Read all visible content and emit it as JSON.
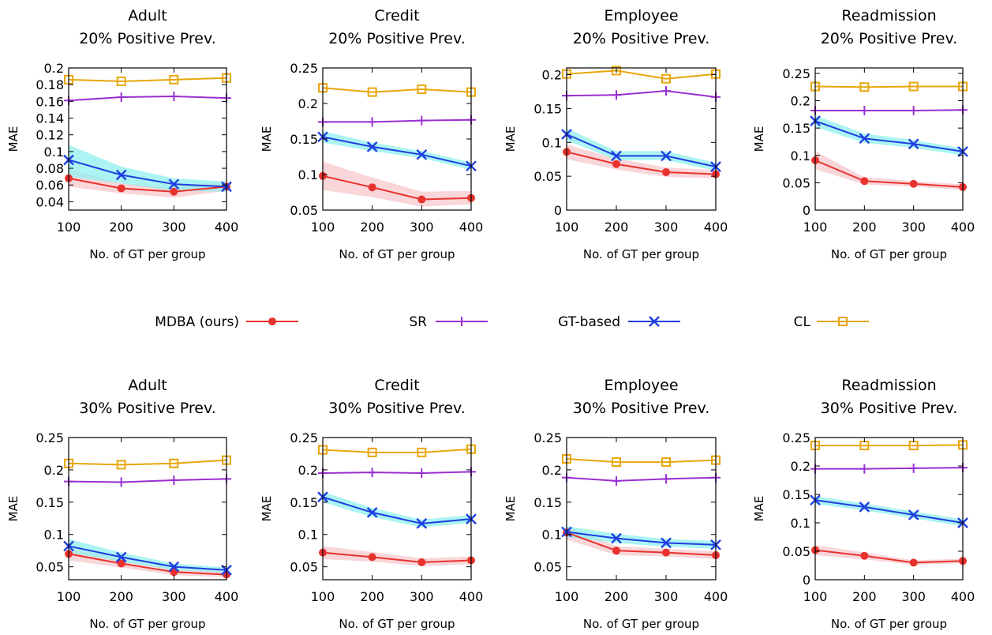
{
  "xlabel": "No. of GT per group",
  "ylabel": "MAE",
  "colors": {
    "MDBA (ours)": "#e8322e",
    "SR": "#9a2fd2",
    "GT-based": "#1f3ee0",
    "CL": "#e8a60c",
    "band_MDBA": "#f7c8cc",
    "band_GT": "#8ff0ef"
  },
  "legend": [
    {
      "label": "MDBA (ours)",
      "marker": "circle"
    },
    {
      "label": "SR",
      "marker": "plus"
    },
    {
      "label": "GT-based",
      "marker": "x"
    },
    {
      "label": "CL",
      "marker": "square"
    }
  ],
  "chart_data": [
    {
      "type": "line",
      "title": [
        "Adult",
        "20% Positive Prev."
      ],
      "x": [
        100,
        200,
        300,
        400
      ],
      "xticks": [
        100,
        200,
        300,
        400
      ],
      "ylim": [
        0.03,
        0.2
      ],
      "yticks": [
        0.04,
        0.06,
        0.08,
        0.1,
        0.12,
        0.14,
        0.16,
        0.18,
        0.2
      ],
      "ytick_labels": [
        "0.04",
        "0.06",
        "0.08",
        "0.1",
        "0.12",
        "0.14",
        "0.16",
        "0.18",
        "0.2"
      ],
      "series": [
        {
          "name": "MDBA (ours)",
          "values": [
            0.068,
            0.056,
            0.052,
            0.058
          ],
          "band": [
            [
              0.058,
              0.079
            ],
            [
              0.05,
              0.062
            ],
            [
              0.045,
              0.058
            ],
            [
              0.053,
              0.064
            ]
          ]
        },
        {
          "name": "SR",
          "values": [
            0.161,
            0.165,
            0.166,
            0.164
          ]
        },
        {
          "name": "GT-based",
          "values": [
            0.09,
            0.072,
            0.061,
            0.058
          ],
          "band": [
            [
              0.07,
              0.108
            ],
            [
              0.062,
              0.082
            ],
            [
              0.053,
              0.068
            ],
            [
              0.052,
              0.064
            ]
          ]
        },
        {
          "name": "CL",
          "values": [
            0.186,
            0.184,
            0.186,
            0.188
          ]
        }
      ]
    },
    {
      "type": "line",
      "title": [
        "Credit",
        "20% Positive Prev."
      ],
      "x": [
        100,
        200,
        300,
        400
      ],
      "xticks": [
        100,
        200,
        300,
        400
      ],
      "ylim": [
        0.05,
        0.25
      ],
      "yticks": [
        0.05,
        0.1,
        0.15,
        0.2,
        0.25
      ],
      "ytick_labels": [
        "0.05",
        "0.1",
        "0.15",
        "0.2",
        "0.25"
      ],
      "series": [
        {
          "name": "MDBA (ours)",
          "values": [
            0.098,
            0.082,
            0.065,
            0.067
          ],
          "band": [
            [
              0.078,
              0.118
            ],
            [
              0.068,
              0.096
            ],
            [
              0.055,
              0.076
            ],
            [
              0.058,
              0.077
            ]
          ]
        },
        {
          "name": "SR",
          "values": [
            0.174,
            0.174,
            0.176,
            0.177
          ]
        },
        {
          "name": "GT-based",
          "values": [
            0.153,
            0.139,
            0.128,
            0.112
          ],
          "band": [
            [
              0.145,
              0.161
            ],
            [
              0.133,
              0.145
            ],
            [
              0.123,
              0.133
            ],
            [
              0.107,
              0.117
            ]
          ]
        },
        {
          "name": "CL",
          "values": [
            0.222,
            0.216,
            0.22,
            0.216
          ]
        }
      ]
    },
    {
      "type": "line",
      "title": [
        "Employee",
        "20% Positive Prev."
      ],
      "x": [
        100,
        200,
        300,
        400
      ],
      "xticks": [
        100,
        200,
        300,
        400
      ],
      "ylim": [
        0,
        0.21
      ],
      "yticks": [
        0,
        0.05,
        0.1,
        0.15,
        0.2
      ],
      "ytick_labels": [
        "0",
        "0.05",
        "0.1",
        "0.15",
        "0.2"
      ],
      "series": [
        {
          "name": "MDBA (ours)",
          "values": [
            0.086,
            0.068,
            0.056,
            0.053
          ],
          "band": [
            [
              0.075,
              0.097
            ],
            [
              0.06,
              0.076
            ],
            [
              0.049,
              0.063
            ],
            [
              0.047,
              0.059
            ]
          ]
        },
        {
          "name": "SR",
          "values": [
            0.169,
            0.17,
            0.176,
            0.167
          ]
        },
        {
          "name": "GT-based",
          "values": [
            0.112,
            0.08,
            0.08,
            0.064
          ],
          "band": [
            [
              0.103,
              0.121
            ],
            [
              0.074,
              0.087
            ],
            [
              0.074,
              0.087
            ],
            [
              0.058,
              0.07
            ]
          ]
        },
        {
          "name": "CL",
          "values": [
            0.201,
            0.206,
            0.194,
            0.201
          ]
        }
      ]
    },
    {
      "type": "line",
      "title": [
        "Readmission",
        "20% Positive Prev."
      ],
      "x": [
        100,
        200,
        300,
        400
      ],
      "xticks": [
        100,
        200,
        300,
        400
      ],
      "ylim": [
        0,
        0.26
      ],
      "yticks": [
        0,
        0.05,
        0.1,
        0.15,
        0.2,
        0.25
      ],
      "ytick_labels": [
        "0",
        "0.05",
        "0.1",
        "0.15",
        "0.2",
        "0.25"
      ],
      "series": [
        {
          "name": "MDBA (ours)",
          "values": [
            0.091,
            0.053,
            0.048,
            0.042
          ],
          "band": [
            [
              0.075,
              0.108
            ],
            [
              0.047,
              0.06
            ],
            [
              0.043,
              0.053
            ],
            [
              0.037,
              0.047
            ]
          ]
        },
        {
          "name": "SR",
          "values": [
            0.182,
            0.182,
            0.182,
            0.183
          ]
        },
        {
          "name": "GT-based",
          "values": [
            0.163,
            0.131,
            0.121,
            0.107
          ],
          "band": [
            [
              0.152,
              0.173
            ],
            [
              0.123,
              0.14
            ],
            [
              0.114,
              0.128
            ],
            [
              0.1,
              0.113
            ]
          ]
        },
        {
          "name": "CL",
          "values": [
            0.226,
            0.225,
            0.226,
            0.226
          ]
        }
      ]
    },
    {
      "type": "line",
      "title": [
        "Adult",
        "30% Positive Prev."
      ],
      "x": [
        100,
        200,
        300,
        400
      ],
      "xticks": [
        100,
        200,
        300,
        400
      ],
      "ylim": [
        0.03,
        0.25
      ],
      "yticks": [
        0.05,
        0.1,
        0.15,
        0.2,
        0.25
      ],
      "ytick_labels": [
        "0.05",
        "0.1",
        "0.15",
        "0.2",
        "0.25"
      ],
      "series": [
        {
          "name": "MDBA (ours)",
          "values": [
            0.07,
            0.055,
            0.042,
            0.038
          ],
          "band": [
            [
              0.06,
              0.08
            ],
            [
              0.049,
              0.061
            ],
            [
              0.037,
              0.047
            ],
            [
              0.034,
              0.042
            ]
          ]
        },
        {
          "name": "SR",
          "values": [
            0.182,
            0.181,
            0.184,
            0.186
          ]
        },
        {
          "name": "GT-based",
          "values": [
            0.082,
            0.065,
            0.05,
            0.045
          ],
          "band": [
            [
              0.072,
              0.093
            ],
            [
              0.058,
              0.072
            ],
            [
              0.045,
              0.055
            ],
            [
              0.041,
              0.049
            ]
          ]
        },
        {
          "name": "CL",
          "values": [
            0.21,
            0.208,
            0.21,
            0.215
          ]
        }
      ]
    },
    {
      "type": "line",
      "title": [
        "Credit",
        "30% Positive Prev."
      ],
      "x": [
        100,
        200,
        300,
        400
      ],
      "xticks": [
        100,
        200,
        300,
        400
      ],
      "ylim": [
        0.03,
        0.25
      ],
      "yticks": [
        0.05,
        0.1,
        0.15,
        0.2,
        0.25
      ],
      "ytick_labels": [
        "0.05",
        "0.1",
        "0.15",
        "0.2",
        "0.25"
      ],
      "series": [
        {
          "name": "MDBA (ours)",
          "values": [
            0.072,
            0.065,
            0.057,
            0.06
          ],
          "band": [
            [
              0.062,
              0.082
            ],
            [
              0.058,
              0.073
            ],
            [
              0.051,
              0.063
            ],
            [
              0.054,
              0.066
            ]
          ]
        },
        {
          "name": "SR",
          "values": [
            0.195,
            0.196,
            0.195,
            0.197
          ]
        },
        {
          "name": "GT-based",
          "values": [
            0.158,
            0.134,
            0.117,
            0.124
          ],
          "band": [
            [
              0.15,
              0.166
            ],
            [
              0.127,
              0.141
            ],
            [
              0.111,
              0.123
            ],
            [
              0.118,
              0.13
            ]
          ]
        },
        {
          "name": "CL",
          "values": [
            0.231,
            0.227,
            0.227,
            0.232
          ]
        }
      ]
    },
    {
      "type": "line",
      "title": [
        "Employee",
        "30% Positive Prev."
      ],
      "x": [
        100,
        200,
        300,
        400
      ],
      "xticks": [
        100,
        200,
        300,
        400
      ],
      "ylim": [
        0.03,
        0.25
      ],
      "yticks": [
        0.05,
        0.1,
        0.15,
        0.2,
        0.25
      ],
      "ytick_labels": [
        "0.05",
        "0.1",
        "0.15",
        "0.2",
        "0.25"
      ],
      "series": [
        {
          "name": "MDBA (ours)",
          "values": [
            0.103,
            0.075,
            0.072,
            0.068
          ],
          "band": [
            [
              0.092,
              0.113
            ],
            [
              0.068,
              0.082
            ],
            [
              0.066,
              0.078
            ],
            [
              0.062,
              0.074
            ]
          ]
        },
        {
          "name": "SR",
          "values": [
            0.188,
            0.183,
            0.186,
            0.188
          ]
        },
        {
          "name": "GT-based",
          "values": [
            0.104,
            0.094,
            0.087,
            0.084
          ],
          "band": [
            [
              0.096,
              0.113
            ],
            [
              0.087,
              0.101
            ],
            [
              0.081,
              0.093
            ],
            [
              0.078,
              0.09
            ]
          ]
        },
        {
          "name": "CL",
          "values": [
            0.217,
            0.212,
            0.212,
            0.215
          ]
        }
      ]
    },
    {
      "type": "line",
      "title": [
        "Readmission",
        "30% Positive Prev."
      ],
      "x": [
        100,
        200,
        300,
        400
      ],
      "xticks": [
        100,
        200,
        300,
        400
      ],
      "ylim": [
        0,
        0.25
      ],
      "yticks": [
        0,
        0.05,
        0.1,
        0.15,
        0.2,
        0.25
      ],
      "ytick_labels": [
        "0",
        "0.05",
        "0.1",
        "0.15",
        "0.2",
        "0.25"
      ],
      "series": [
        {
          "name": "MDBA (ours)",
          "values": [
            0.052,
            0.042,
            0.03,
            0.033
          ],
          "band": [
            [
              0.043,
              0.061
            ],
            [
              0.036,
              0.048
            ],
            [
              0.026,
              0.034
            ],
            [
              0.029,
              0.037
            ]
          ]
        },
        {
          "name": "SR",
          "values": [
            0.195,
            0.195,
            0.196,
            0.197
          ]
        },
        {
          "name": "GT-based",
          "values": [
            0.14,
            0.128,
            0.114,
            0.1
          ],
          "band": [
            [
              0.133,
              0.147
            ],
            [
              0.122,
              0.134
            ],
            [
              0.108,
              0.12
            ],
            [
              0.094,
              0.106
            ]
          ]
        },
        {
          "name": "CL",
          "values": [
            0.236,
            0.236,
            0.236,
            0.237
          ]
        }
      ]
    }
  ]
}
